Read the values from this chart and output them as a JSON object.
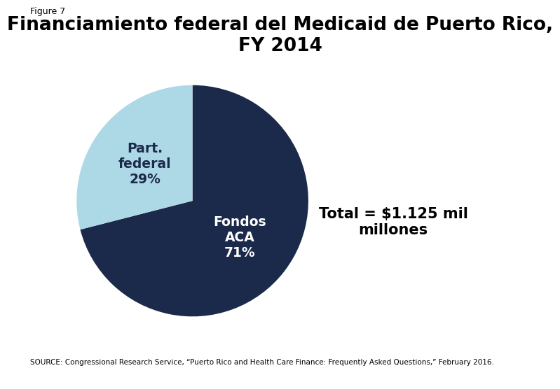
{
  "title": "Financiamiento federal del Medicaid de Puerto Rico,\nFY 2014",
  "figure_label": "Figure 7",
  "slices": [
    71,
    29
  ],
  "slice_labels": [
    "Fondos\nACA\n71%",
    "Part.\nfederal\n29%"
  ],
  "slice_colors": [
    "#1B2A4A",
    "#ADD8E6"
  ],
  "slice_text_colors": [
    "white",
    "#1B2A4A"
  ],
  "annotation": "Total = $1.125 mil\nmillones",
  "source_text": "SOURCE: Congressional Research Service, “Puerto Rico and Health Care Finance: Frequently Asked Questions,” February 2016.",
  "start_angle": 90,
  "background_color": "#FFFFFF",
  "title_fontsize": 19,
  "label_fontsize": 13.5,
  "annotation_fontsize": 15
}
